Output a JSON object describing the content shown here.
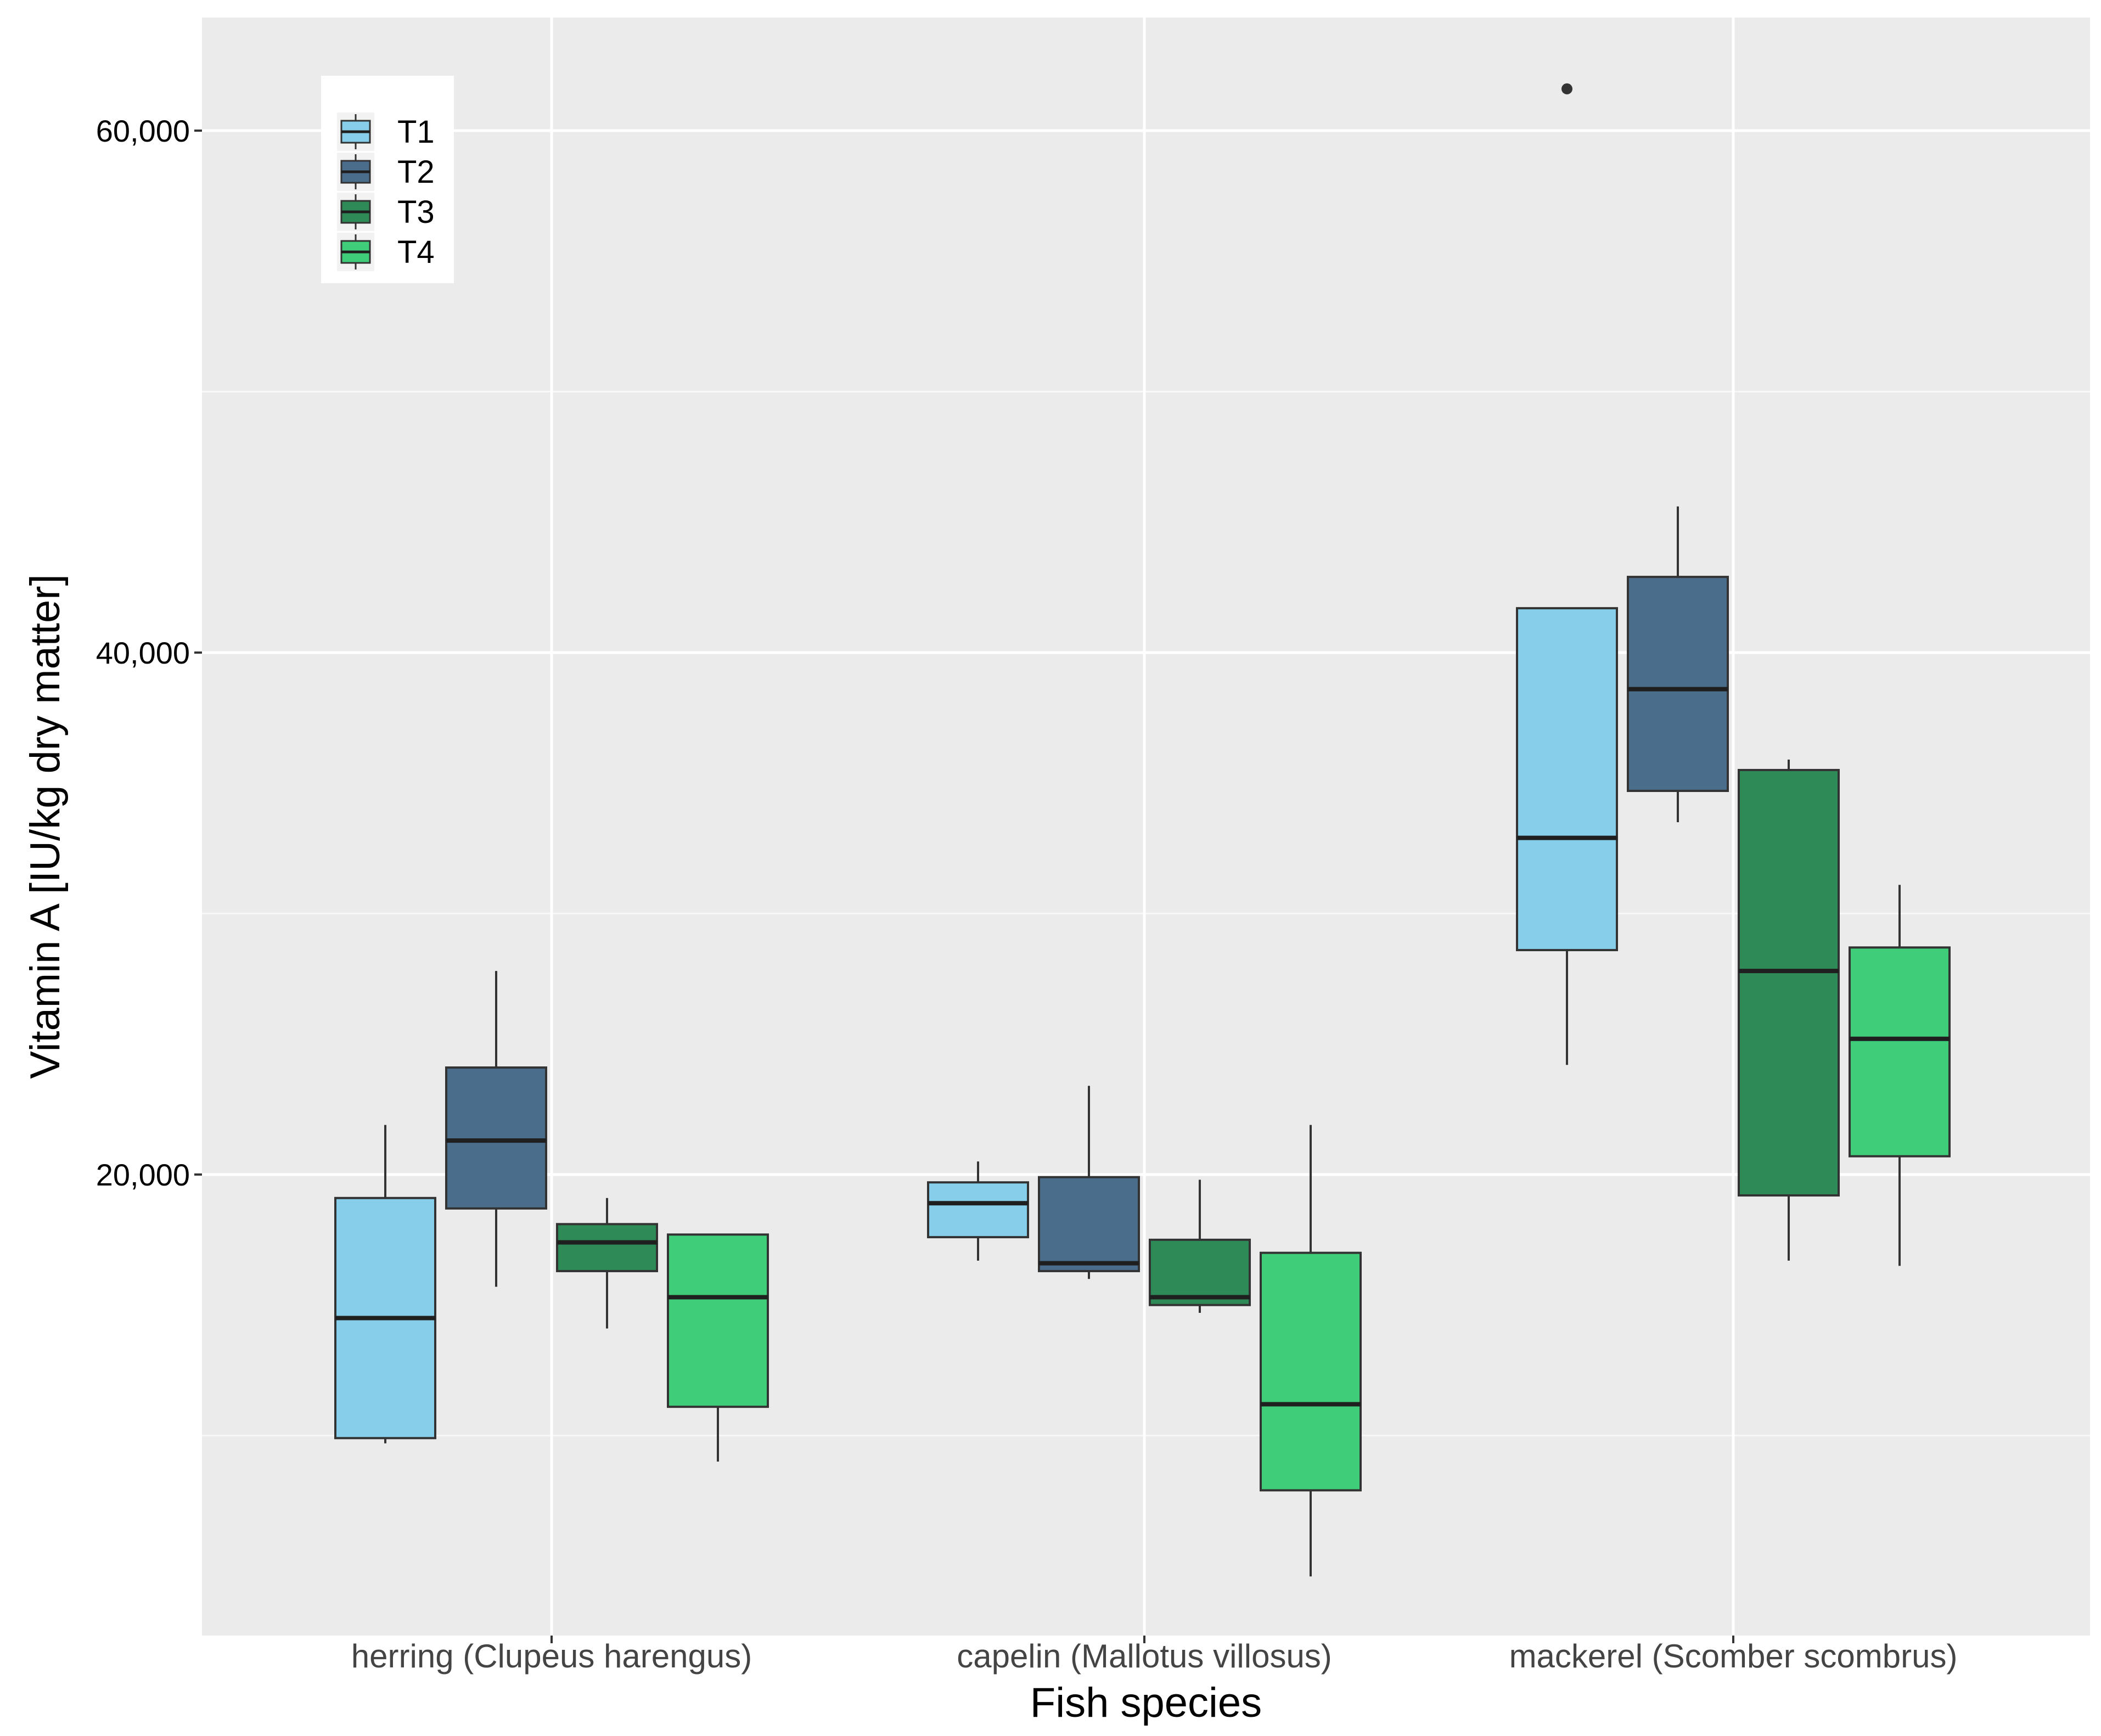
{
  "chart_data": {
    "type": "boxplot",
    "title": "",
    "xlabel": "Fish species",
    "ylabel": "Vitamin A [IU/kg dry matter]",
    "ylim": [
      3000,
      65000
    ],
    "yticks": [
      {
        "value": 20000,
        "label": "20,000"
      },
      {
        "value": 40000,
        "label": "40,000"
      },
      {
        "value": 60000,
        "label": "60,000"
      }
    ],
    "y_minor_gridlines": [
      10000,
      30000,
      50000
    ],
    "categories": [
      "herring (Clupeus harengus)",
      "capelin (Mallotus villosus)",
      "mackerel (Scomber scombrus)"
    ],
    "legend": {
      "position": "top-left",
      "entries": [
        "T1",
        "T2",
        "T3",
        "T4"
      ]
    },
    "series": [
      {
        "name": "T1",
        "color": "#87CEEB",
        "boxes": [
          {
            "min": 9700,
            "q1": 9900,
            "median": 14500,
            "q3": 19100,
            "max": 21900,
            "outliers": []
          },
          {
            "min": 16700,
            "q1": 17600,
            "median": 18900,
            "q3": 19700,
            "max": 20500,
            "outliers": []
          },
          {
            "min": 24200,
            "q1": 28600,
            "median": 32900,
            "q3": 41700,
            "max": 41700,
            "outliers": [
              61600
            ]
          }
        ]
      },
      {
        "name": "T2",
        "color": "#4A6D8C",
        "boxes": [
          {
            "min": 15700,
            "q1": 18700,
            "median": 21300,
            "q3": 24100,
            "max": 27800,
            "outliers": []
          },
          {
            "min": 16000,
            "q1": 16300,
            "median": 16600,
            "q3": 19900,
            "max": 23400,
            "outliers": []
          },
          {
            "min": 33500,
            "q1": 34700,
            "median": 38600,
            "q3": 42900,
            "max": 45600,
            "outliers": []
          }
        ]
      },
      {
        "name": "T3",
        "color": "#2E8B57",
        "boxes": [
          {
            "min": 14100,
            "q1": 16300,
            "median": 17400,
            "q3": 18100,
            "max": 19100,
            "outliers": []
          },
          {
            "min": 14700,
            "q1": 15000,
            "median": 15300,
            "q3": 17500,
            "max": 19800,
            "outliers": []
          },
          {
            "min": 16700,
            "q1": 19200,
            "median": 27800,
            "q3": 35500,
            "max": 35900,
            "outliers": []
          }
        ]
      },
      {
        "name": "T4",
        "color": "#40CD7A",
        "boxes": [
          {
            "min": 9000,
            "q1": 11100,
            "median": 15300,
            "q3": 17700,
            "max": 17700,
            "outliers": []
          },
          {
            "min": 4600,
            "q1": 7900,
            "median": 11200,
            "q3": 17000,
            "max": 21900,
            "outliers": []
          },
          {
            "min": 16500,
            "q1": 20700,
            "median": 25200,
            "q3": 28700,
            "max": 31100,
            "outliers": []
          }
        ]
      }
    ]
  }
}
